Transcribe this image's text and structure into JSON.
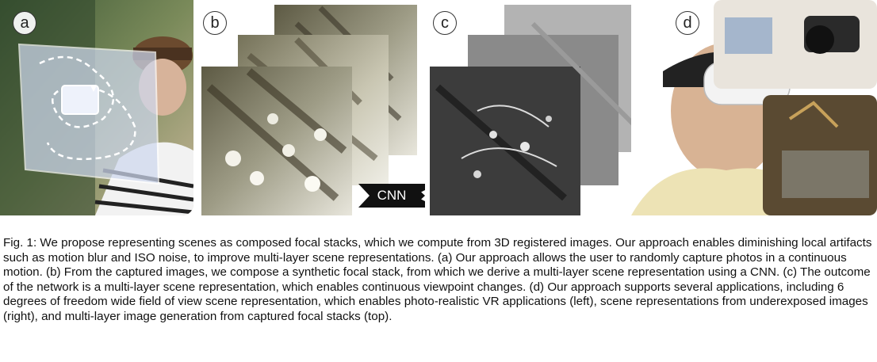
{
  "figure": {
    "panel_labels": [
      "a",
      "b",
      "c",
      "d"
    ],
    "cnn_label": "CNN"
  },
  "caption": {
    "text": "Fig. 1: We propose representing scenes as composed focal stacks, which we compute from 3D registered images. Our approach enables diminishing local artifacts such as motion blur and ISO noise, to improve multi-layer scene representations. (a) Our approach allows the user to randomly capture photos in a continuous motion. (b) From the captured images, we compose a synthetic focal stack, from which we derive a multi-layer scene representation using a CNN. (c) The outcome of the network is a multi-layer scene representation, which enables continuous viewpoint changes. (d) Our approach supports several applications, including 6 degrees of freedom wide field of view scene representation, which enables photo-realistic VR applications (left), scene representations from underexposed images (right), and multi-layer image generation from captured focal stacks (top)."
  },
  "colors": {
    "label_border": "#333333",
    "cnn_fill": "#111111"
  }
}
